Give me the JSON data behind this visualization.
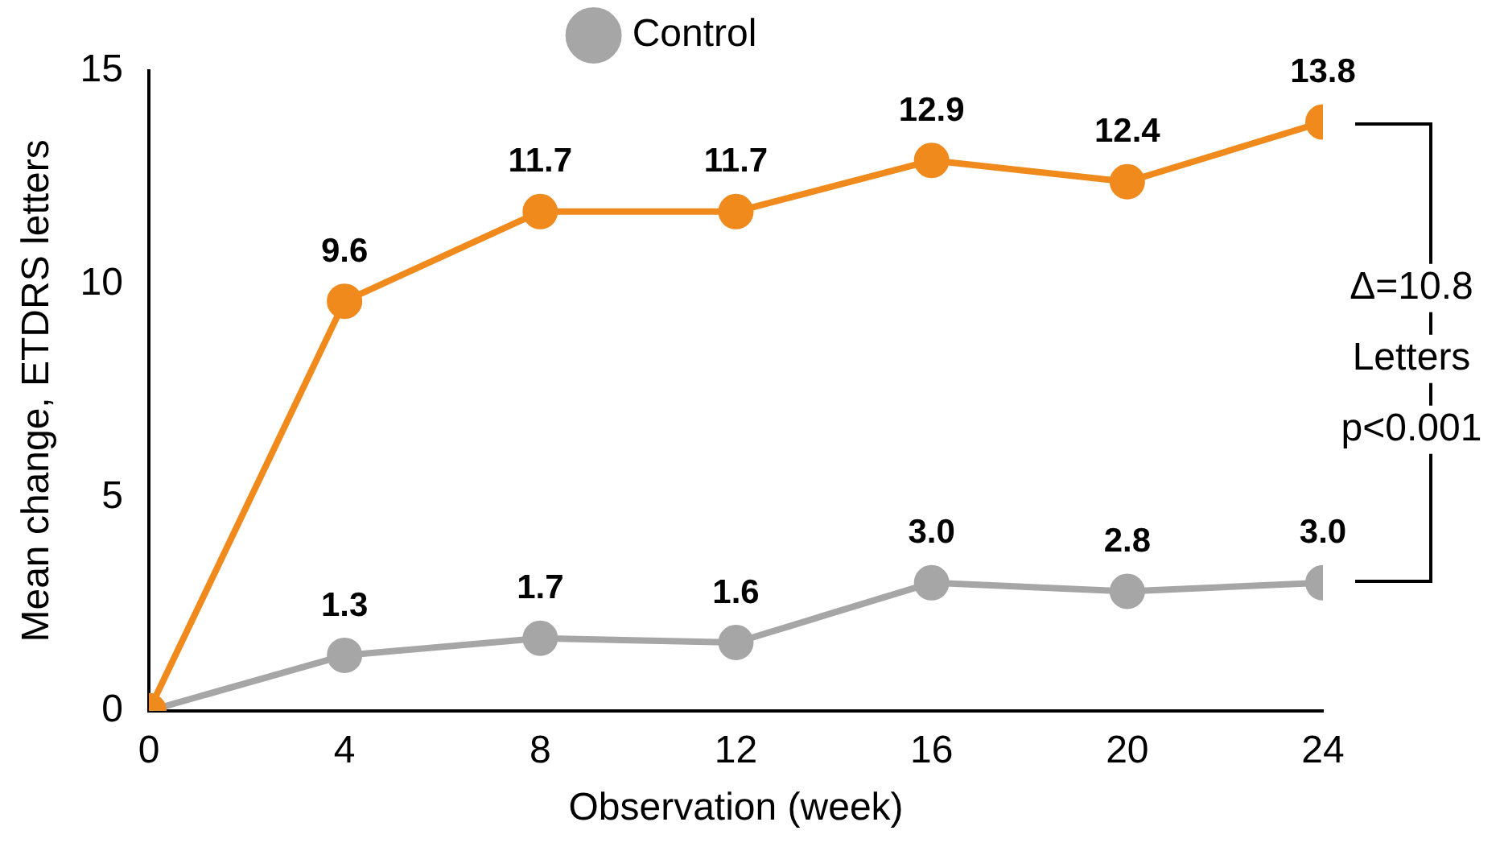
{
  "chart_data": {
    "type": "line",
    "xlabel": "Observation (week)",
    "ylabel": "Mean change, ETDRS letters",
    "x": [
      0,
      4,
      8,
      12,
      16,
      20,
      24
    ],
    "series": [
      {
        "color": "#f08a1c",
        "values": [
          0,
          9.6,
          11.7,
          11.7,
          12.9,
          12.4,
          13.8
        ],
        "value_labels": [
          null,
          "9.6",
          "11.7",
          "11.7",
          "12.9",
          "12.4",
          "13.8"
        ]
      },
      {
        "name": "Control",
        "color": "#a6a6a6",
        "values": [
          0,
          1.3,
          1.7,
          1.6,
          3.0,
          2.8,
          3.0
        ],
        "value_labels": [
          null,
          "1.3",
          "1.7",
          "1.6",
          "3.0",
          "2.8",
          "3.0"
        ]
      }
    ],
    "xlim": [
      0,
      24
    ],
    "xticks": [
      0,
      4,
      8,
      12,
      16,
      20,
      24
    ],
    "ylim": [
      0,
      15
    ],
    "yticks": [
      0,
      5,
      10,
      15
    ],
    "annotations": [
      "Δ=10.8",
      "Letters",
      "p<0.001"
    ],
    "grid": false,
    "legend": "top",
    "marker": "circle",
    "line_style": "solid"
  }
}
